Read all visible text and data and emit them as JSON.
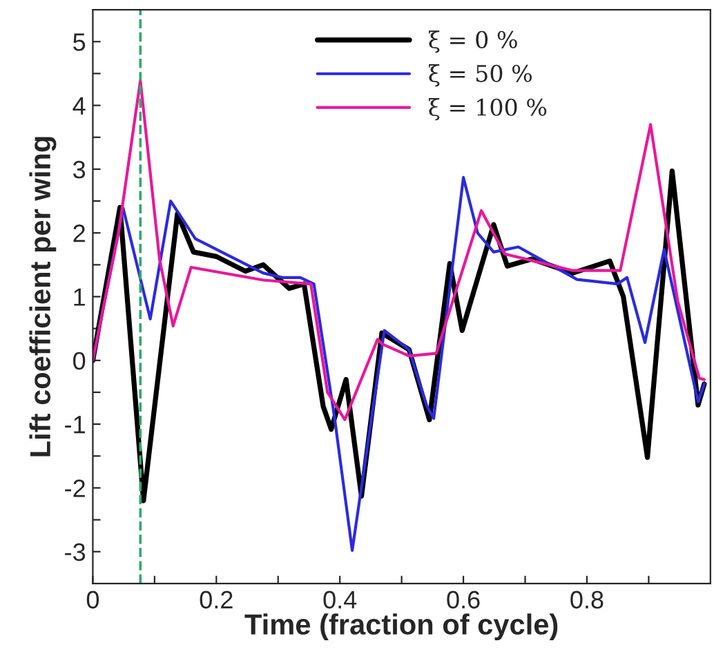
{
  "chart_data": {
    "type": "line",
    "xlabel": "Time (fraction of cycle)",
    "ylabel": "Lift coefficient per wing",
    "xlim": [
      0,
      1
    ],
    "ylim": [
      -3.5,
      5.5
    ],
    "xticks": [
      0,
      0.2,
      0.4,
      0.6,
      0.8,
      {
        "value": 0.1,
        "label": null
      },
      {
        "value": 0.3,
        "label": null
      },
      {
        "value": 0.5,
        "label": null
      },
      {
        "value": 0.7,
        "label": null
      },
      {
        "value": 0.9,
        "label": null
      }
    ],
    "yticks": [
      -3,
      -2,
      -1,
      0,
      1,
      2,
      3,
      4,
      5,
      {
        "value": -2.5,
        "label": null
      },
      {
        "value": -1.5,
        "label": null
      },
      {
        "value": -0.5,
        "label": null
      },
      {
        "value": 0.5,
        "label": null
      },
      {
        "value": 1.5,
        "label": null
      },
      {
        "value": 2.5,
        "label": null
      },
      {
        "value": 3.5,
        "label": null
      },
      {
        "value": 4.5,
        "label": null
      }
    ],
    "grid": false,
    "legend": "top",
    "marker": "none",
    "line_style": "solid",
    "ref_lines": [
      {
        "axis": "x",
        "value": 0.077,
        "color": "#2eaa6a",
        "line_style": "dashed"
      }
    ],
    "series": [
      {
        "name": "ξ = 0 %",
        "color": "#000000",
        "x": [
          0,
          0.044,
          0.082,
          0.137,
          0.163,
          0.2,
          0.247,
          0.276,
          0.318,
          0.342,
          0.373,
          0.386,
          0.41,
          0.435,
          0.468,
          0.512,
          0.545,
          0.578,
          0.598,
          0.649,
          0.671,
          0.711,
          0.777,
          0.837,
          0.859,
          0.898,
          0.938,
          0.98,
          0.99
        ],
        "values": [
          0,
          2.4,
          -2.2,
          2.3,
          1.7,
          1.63,
          1.4,
          1.5,
          1.13,
          1.2,
          -0.72,
          -1.08,
          -0.3,
          -2.13,
          0.43,
          0.17,
          -0.93,
          1.52,
          0.47,
          2.13,
          1.48,
          1.59,
          1.37,
          1.56,
          1.0,
          -1.52,
          2.97,
          -0.7,
          -0.37
        ]
      },
      {
        "name": "ξ = 50 %",
        "color": "#2a2ae0",
        "x": [
          0,
          0.049,
          0.093,
          0.126,
          0.166,
          0.276,
          0.307,
          0.336,
          0.358,
          0.391,
          0.42,
          0.472,
          0.512,
          0.541,
          0.552,
          0.6,
          0.623,
          0.649,
          0.689,
          0.784,
          0.85,
          0.865,
          0.894,
          0.925,
          0.98,
          0.99
        ],
        "values": [
          0,
          2.39,
          0.65,
          2.5,
          1.91,
          1.37,
          1.3,
          1.3,
          1.2,
          -0.87,
          -2.98,
          0.47,
          0.17,
          -0.72,
          -0.91,
          2.87,
          2.0,
          1.7,
          1.78,
          1.27,
          1.2,
          1.3,
          0.28,
          1.74,
          -0.65,
          -0.37
        ]
      },
      {
        "name": "ξ = 100 %",
        "color": "#e8189a",
        "x": [
          0,
          0.042,
          0.077,
          0.108,
          0.13,
          0.159,
          0.276,
          0.353,
          0.38,
          0.408,
          0.461,
          0.468,
          0.512,
          0.556,
          0.629,
          0.667,
          0.777,
          0.854,
          0.903,
          0.947,
          0.982,
          0.99
        ],
        "values": [
          0,
          2.02,
          4.39,
          1.59,
          0.54,
          1.46,
          1.26,
          1.2,
          -0.5,
          -0.93,
          0.33,
          0.26,
          0.07,
          0.11,
          2.35,
          1.67,
          1.41,
          1.41,
          3.7,
          0.93,
          -0.28,
          -0.3
        ]
      }
    ]
  }
}
